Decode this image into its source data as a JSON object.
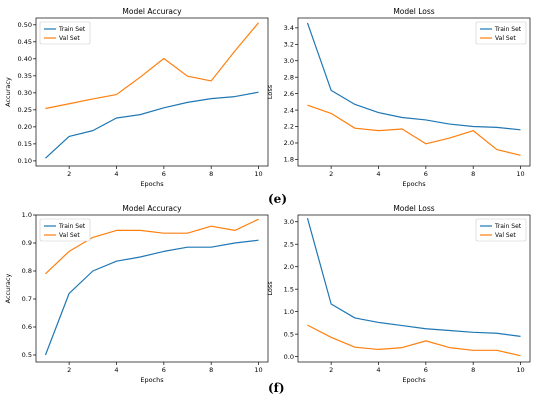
{
  "figure": {
    "row_labels": [
      "(e)",
      "(f)"
    ]
  },
  "colors": {
    "train": "#1f77b4",
    "val": "#ff7f0e"
  },
  "chart_data": [
    {
      "type": "line",
      "title": "Model Accuracy",
      "xlabel": "Epochs",
      "ylabel": "Accuracy",
      "x": [
        1,
        2,
        3,
        4,
        5,
        6,
        7,
        8,
        9,
        10
      ],
      "xlim": [
        0.6,
        10.4
      ],
      "ylim": [
        0.085,
        0.52
      ],
      "xticks": [
        2,
        4,
        6,
        8,
        10
      ],
      "yticks": [
        0.1,
        0.15,
        0.2,
        0.25,
        0.3,
        0.35,
        0.4,
        0.45,
        0.5
      ],
      "ytick_labels": [
        "0.10",
        "0.15",
        "0.20",
        "0.25",
        "0.30",
        "0.35",
        "0.40",
        "0.45",
        "0.50"
      ],
      "legend": "top-left",
      "grid": false,
      "series": [
        {
          "name": "Train Set",
          "values": [
            0.108,
            0.172,
            0.189,
            0.226,
            0.236,
            0.256,
            0.272,
            0.283,
            0.289,
            0.302
          ]
        },
        {
          "name": "Val Set",
          "values": [
            0.254,
            0.268,
            0.282,
            0.295,
            0.346,
            0.401,
            0.349,
            0.335,
            0.423,
            0.506
          ]
        }
      ]
    },
    {
      "type": "line",
      "title": "Model Loss",
      "xlabel": "Epochs",
      "ylabel": "Loss",
      "x": [
        1,
        2,
        3,
        4,
        5,
        6,
        7,
        8,
        9,
        10
      ],
      "xlim": [
        0.6,
        10.4
      ],
      "ylim": [
        1.72,
        3.52
      ],
      "xticks": [
        2,
        4,
        6,
        8,
        10
      ],
      "yticks": [
        1.8,
        2.0,
        2.2,
        2.4,
        2.6,
        2.8,
        3.0,
        3.2,
        3.4
      ],
      "ytick_labels": [
        "1.8",
        "2.0",
        "2.2",
        "2.4",
        "2.6",
        "2.8",
        "3.0",
        "3.2",
        "3.4"
      ],
      "legend": "top-right",
      "grid": false,
      "series": [
        {
          "name": "Train Set",
          "values": [
            3.46,
            2.64,
            2.47,
            2.37,
            2.31,
            2.28,
            2.23,
            2.2,
            2.19,
            2.16
          ]
        },
        {
          "name": "Val Set",
          "values": [
            2.46,
            2.36,
            2.18,
            2.15,
            2.17,
            1.99,
            2.06,
            2.15,
            1.92,
            1.85
          ]
        }
      ]
    },
    {
      "type": "line",
      "title": "Model Accuracy",
      "xlabel": "Epochs",
      "ylabel": "Accuracy",
      "x": [
        1,
        2,
        3,
        4,
        5,
        6,
        7,
        8,
        9,
        10
      ],
      "xlim": [
        0.6,
        10.4
      ],
      "ylim": [
        0.475,
        1.0
      ],
      "xticks": [
        2,
        4,
        6,
        8,
        10
      ],
      "yticks": [
        0.5,
        0.6,
        0.7,
        0.8,
        0.9,
        1.0
      ],
      "ytick_labels": [
        "0.5",
        "0.6",
        "0.7",
        "0.8",
        "0.9",
        "1.0"
      ],
      "legend": "top-left",
      "grid": false,
      "series": [
        {
          "name": "Train Set",
          "values": [
            0.5,
            0.72,
            0.8,
            0.835,
            0.85,
            0.87,
            0.885,
            0.885,
            0.9,
            0.91
          ]
        },
        {
          "name": "Val Set",
          "values": [
            0.79,
            0.87,
            0.92,
            0.945,
            0.945,
            0.935,
            0.935,
            0.96,
            0.945,
            0.985
          ]
        }
      ]
    },
    {
      "type": "line",
      "title": "Model Loss",
      "xlabel": "Epochs",
      "ylabel": "Loss",
      "x": [
        1,
        2,
        3,
        4,
        5,
        6,
        7,
        8,
        9,
        10
      ],
      "xlim": [
        0.6,
        10.4
      ],
      "ylim": [
        -0.12,
        3.15
      ],
      "xticks": [
        2,
        4,
        6,
        8,
        10
      ],
      "yticks": [
        0.0,
        0.5,
        1.0,
        1.5,
        2.0,
        2.5,
        3.0
      ],
      "ytick_labels": [
        "0.0",
        "0.5",
        "1.0",
        "1.5",
        "2.0",
        "2.5",
        "3.0"
      ],
      "legend": "top-right",
      "grid": false,
      "series": [
        {
          "name": "Train Set",
          "values": [
            3.08,
            1.17,
            0.86,
            0.76,
            0.69,
            0.62,
            0.58,
            0.54,
            0.52,
            0.45
          ]
        },
        {
          "name": "Val Set",
          "values": [
            0.7,
            0.43,
            0.21,
            0.16,
            0.2,
            0.35,
            0.2,
            0.14,
            0.14,
            0.02
          ]
        }
      ]
    }
  ]
}
